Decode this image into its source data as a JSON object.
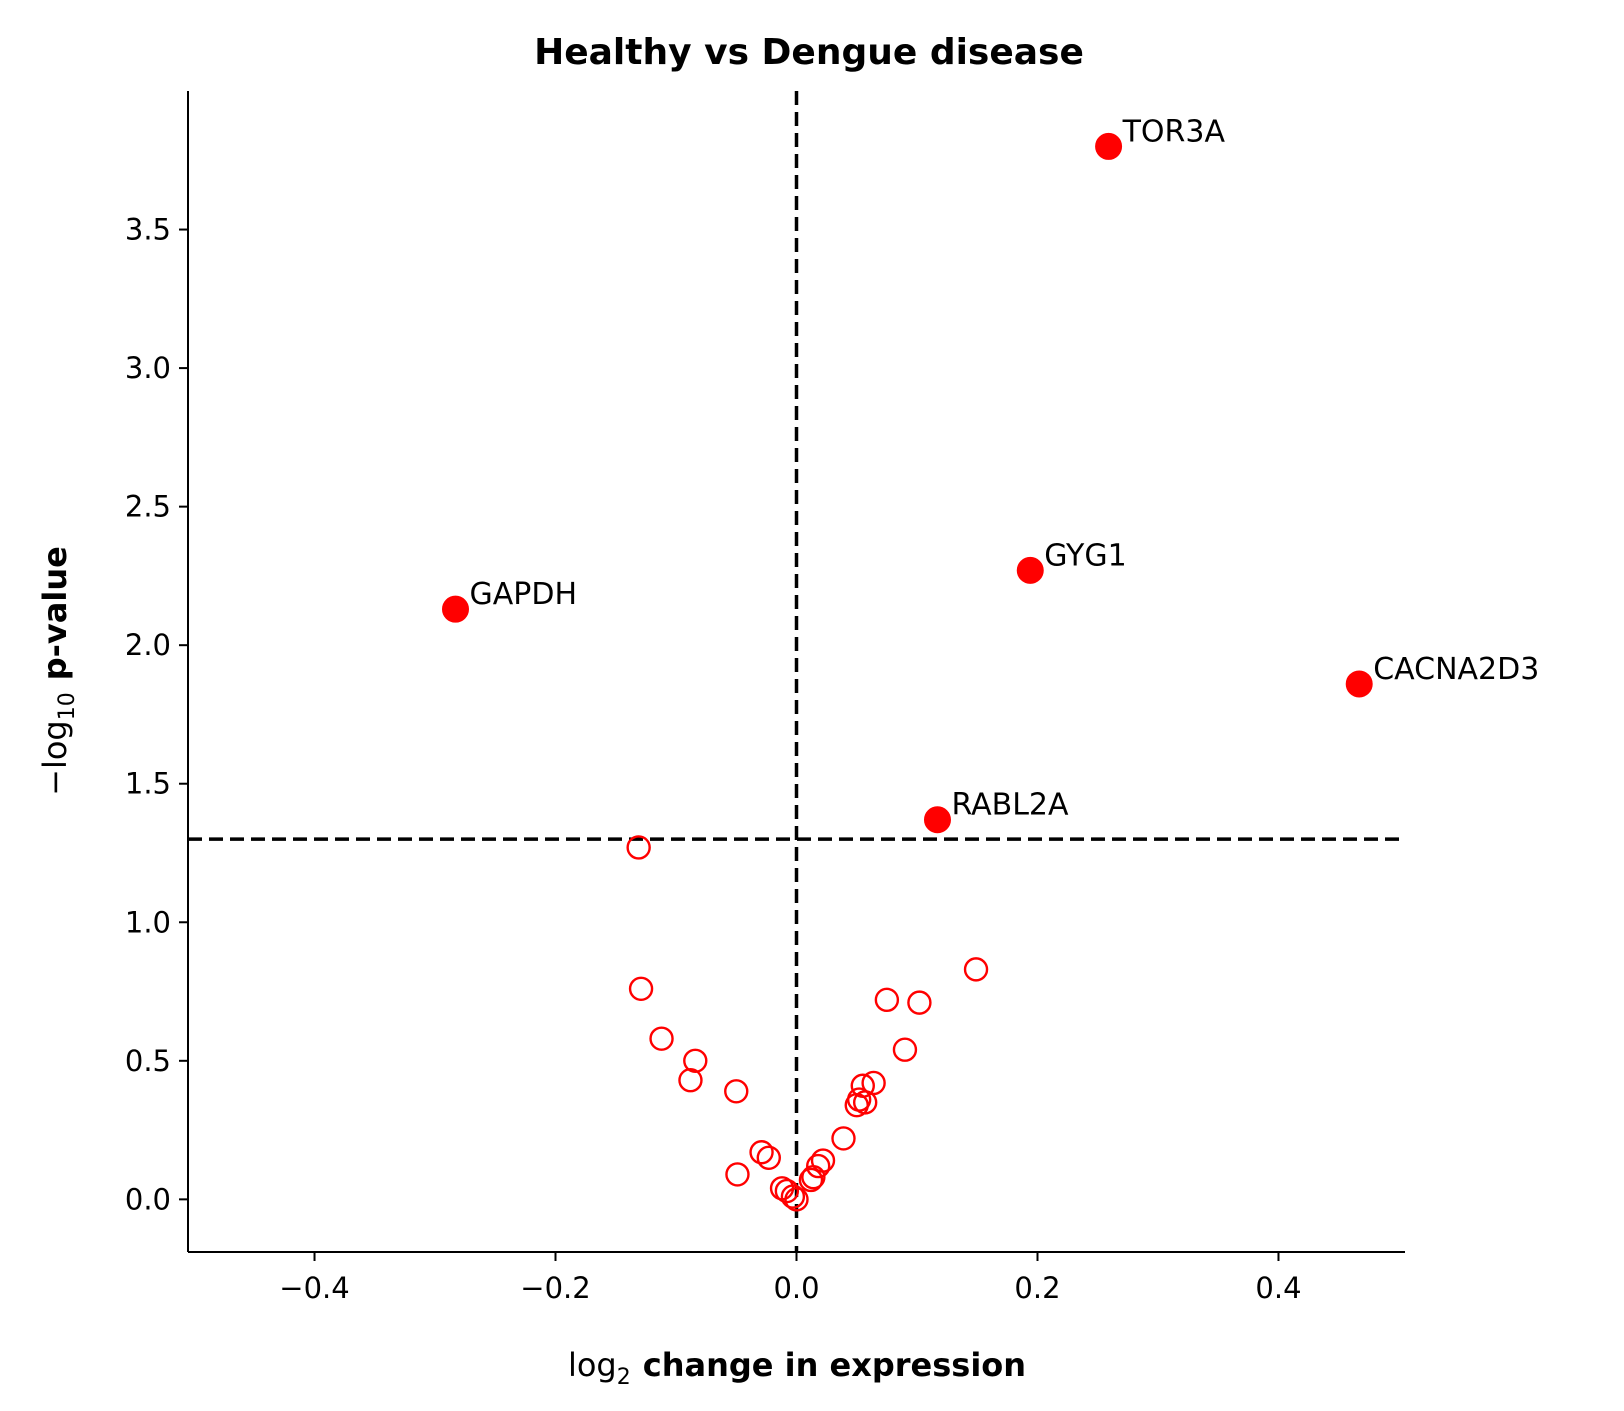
{
  "chart_data": {
    "type": "scatter",
    "title": "Healthy vs Dengue disease",
    "xlabel_prefix": "log",
    "xlabel_sub": "2",
    "xlabel_rest": "change in expression",
    "ylabel_prefix": "−log",
    "ylabel_sub": "10",
    "ylabel_rest": "p-value",
    "xlim": [
      -0.505,
      0.505
    ],
    "ylim": [
      -0.19,
      4.0
    ],
    "x_ticks": [
      -0.4,
      -0.2,
      0.0,
      0.2,
      0.4
    ],
    "x_tick_labels": [
      "−0.4",
      "−0.2",
      "0.0",
      "0.2",
      "0.4"
    ],
    "y_ticks": [
      0.0,
      0.5,
      1.0,
      1.5,
      2.0,
      2.5,
      3.0,
      3.5
    ],
    "y_tick_labels": [
      "0.0",
      "0.5",
      "1.0",
      "1.5",
      "2.0",
      "2.5",
      "3.0",
      "3.5"
    ],
    "grid": false,
    "threshold_x": 0.0,
    "threshold_y": 1.3,
    "marker_color": "#ff0000",
    "line_color": "#000000",
    "significant": [
      {
        "label": "TOR3A",
        "x": 0.259,
        "y": 3.8
      },
      {
        "label": "GYG1",
        "x": 0.194,
        "y": 2.27
      },
      {
        "label": "GAPDH",
        "x": -0.283,
        "y": 2.13
      },
      {
        "label": "CACNA2D3",
        "x": 0.467,
        "y": 1.86
      },
      {
        "label": "RABL2A",
        "x": 0.117,
        "y": 1.37
      }
    ],
    "not_significant": [
      {
        "x": -0.131,
        "y": 1.27
      },
      {
        "x": 0.149,
        "y": 0.83
      },
      {
        "x": -0.129,
        "y": 0.76
      },
      {
        "x": 0.075,
        "y": 0.72
      },
      {
        "x": 0.102,
        "y": 0.71
      },
      {
        "x": -0.112,
        "y": 0.58
      },
      {
        "x": 0.09,
        "y": 0.54
      },
      {
        "x": -0.084,
        "y": 0.5
      },
      {
        "x": -0.088,
        "y": 0.43
      },
      {
        "x": 0.064,
        "y": 0.42
      },
      {
        "x": 0.055,
        "y": 0.41
      },
      {
        "x": -0.05,
        "y": 0.39
      },
      {
        "x": 0.052,
        "y": 0.36
      },
      {
        "x": 0.057,
        "y": 0.35
      },
      {
        "x": 0.05,
        "y": 0.34
      },
      {
        "x": 0.039,
        "y": 0.22
      },
      {
        "x": -0.029,
        "y": 0.17
      },
      {
        "x": -0.023,
        "y": 0.15
      },
      {
        "x": 0.022,
        "y": 0.14
      },
      {
        "x": 0.018,
        "y": 0.12
      },
      {
        "x": -0.049,
        "y": 0.09
      },
      {
        "x": 0.014,
        "y": 0.08
      },
      {
        "x": 0.012,
        "y": 0.07
      },
      {
        "x": -0.012,
        "y": 0.04
      },
      {
        "x": -0.008,
        "y": 0.03
      },
      {
        "x": -0.003,
        "y": 0.01
      },
      {
        "x": 0.0,
        "y": 0.0
      }
    ]
  }
}
